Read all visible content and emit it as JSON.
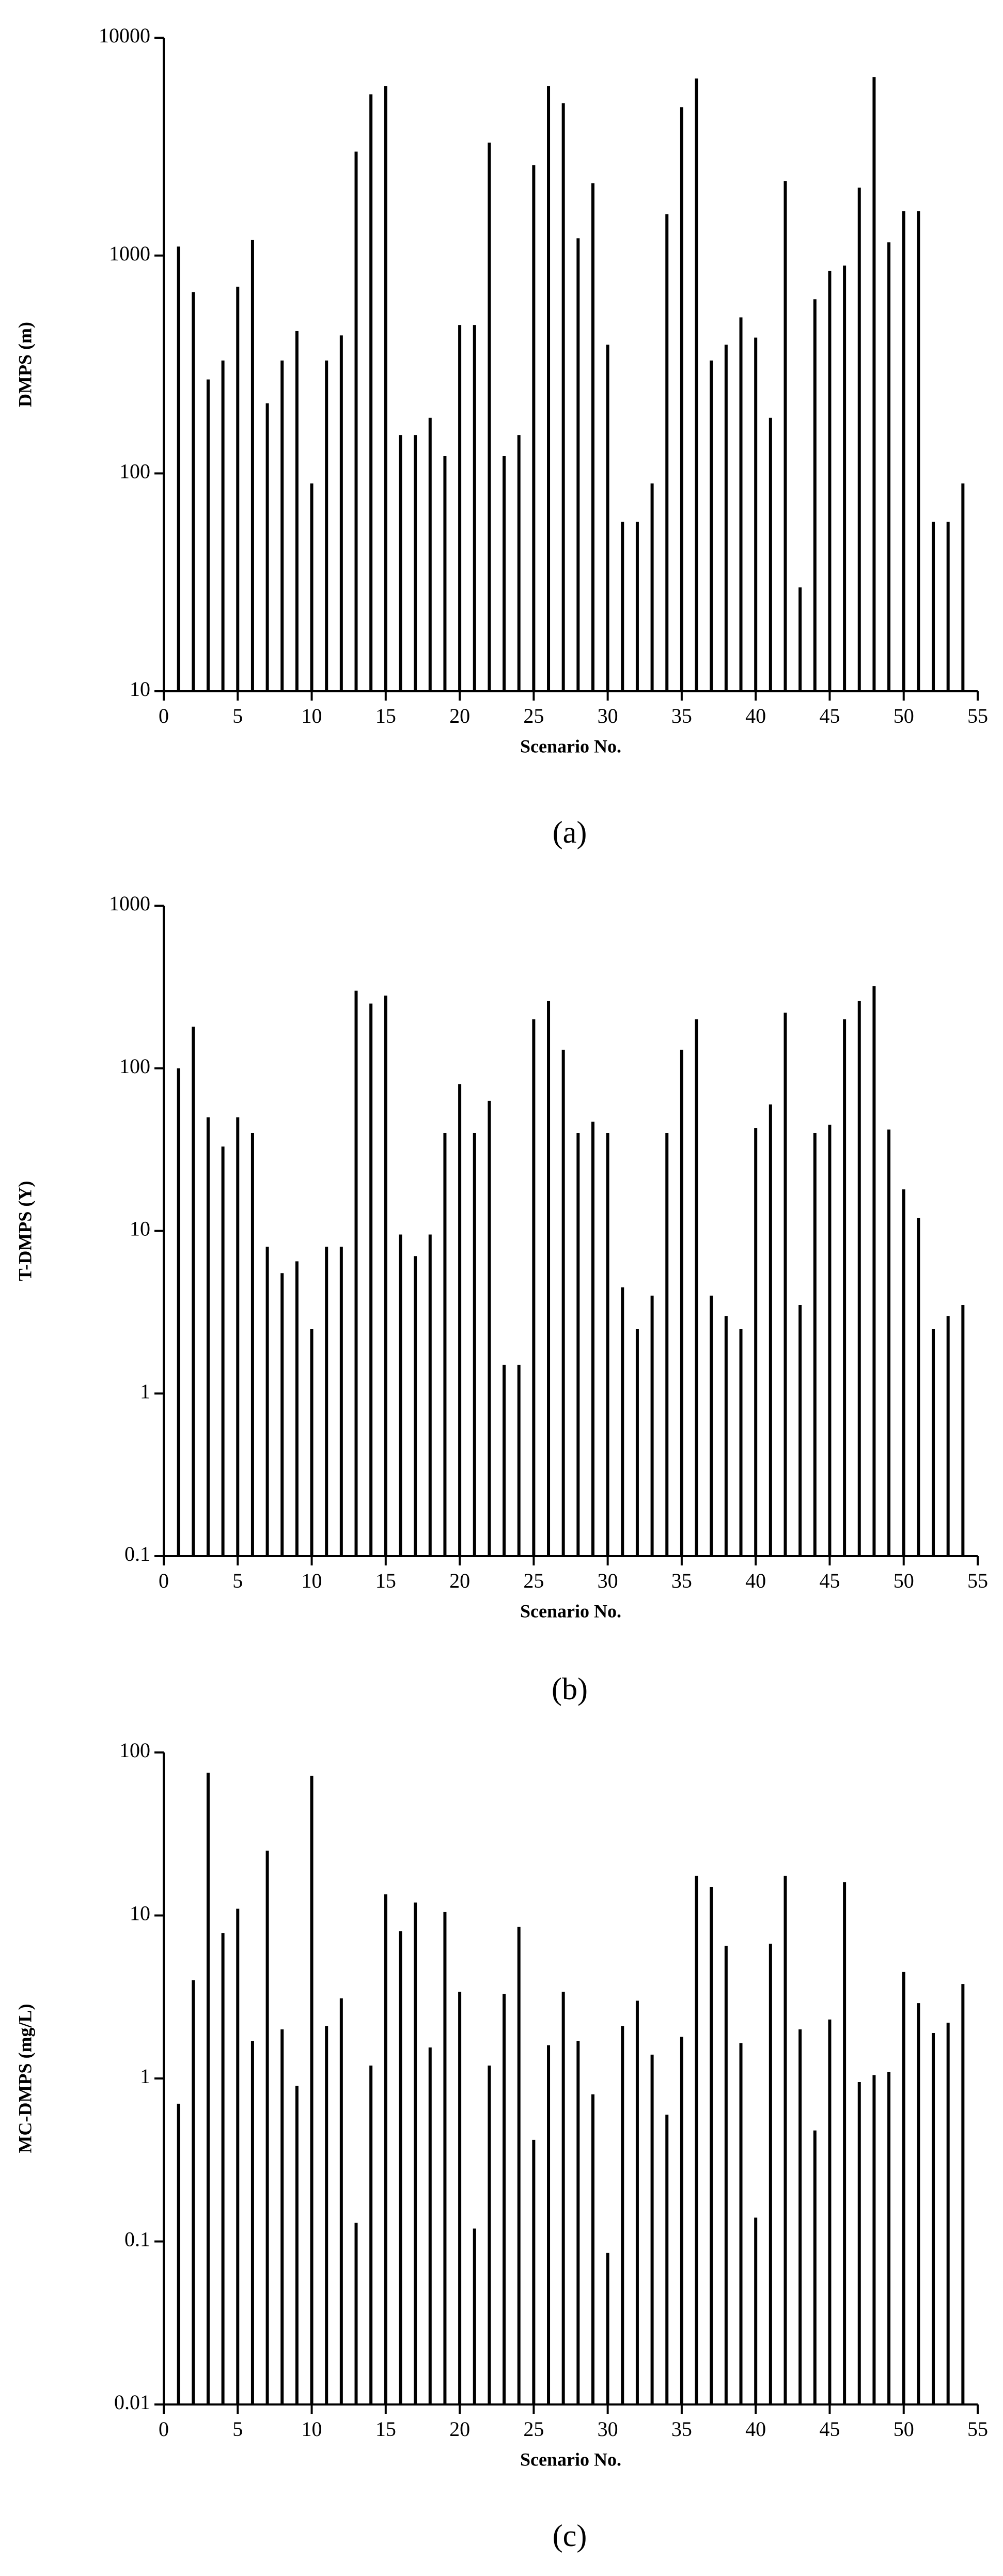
{
  "chart_data": [
    {
      "type": "bar",
      "x_label": "Scenario No.",
      "y_label": "DMPS (m)",
      "caption": "(a)",
      "color": "#000000",
      "log_y": true,
      "xlim": [
        0,
        55
      ],
      "xticks": [
        0,
        5,
        10,
        15,
        20,
        25,
        30,
        35,
        40,
        45,
        50,
        55
      ],
      "ylim": [
        10,
        10000
      ],
      "yticks": [
        10,
        100,
        1000,
        10000
      ],
      "x": [
        1,
        2,
        3,
        4,
        5,
        6,
        7,
        8,
        9,
        10,
        11,
        12,
        13,
        14,
        15,
        16,
        17,
        18,
        19,
        20,
        21,
        22,
        23,
        24,
        25,
        26,
        27,
        28,
        29,
        30,
        31,
        32,
        33,
        34,
        35,
        36,
        37,
        38,
        39,
        40,
        41,
        42,
        43,
        44,
        45,
        46,
        47,
        48,
        49,
        50,
        51,
        52,
        53,
        54
      ],
      "values": [
        1100,
        680,
        270,
        330,
        720,
        1180,
        210,
        330,
        450,
        90,
        330,
        430,
        3000,
        5500,
        6000,
        150,
        150,
        180,
        120,
        480,
        480,
        3300,
        120,
        150,
        2600,
        6000,
        5000,
        1200,
        2150,
        390,
        60,
        60,
        90,
        1550,
        4800,
        6500,
        330,
        390,
        520,
        420,
        180,
        2200,
        30,
        630,
        850,
        900,
        2050,
        6600,
        1150,
        1600,
        1600,
        60,
        60,
        90
      ]
    },
    {
      "type": "bar",
      "x_label": "Scenario No.",
      "y_label": "T-DMPS (Y)",
      "caption": "(b)",
      "color": "#000000",
      "log_y": true,
      "xlim": [
        0,
        55
      ],
      "xticks": [
        0,
        5,
        10,
        15,
        20,
        25,
        30,
        35,
        40,
        45,
        50,
        55
      ],
      "ylim": [
        0.1,
        1000
      ],
      "yticks": [
        0.1,
        1,
        10,
        100,
        1000
      ],
      "x": [
        1,
        2,
        3,
        4,
        5,
        6,
        7,
        8,
        9,
        10,
        11,
        12,
        13,
        14,
        15,
        16,
        17,
        18,
        19,
        20,
        21,
        22,
        23,
        24,
        25,
        26,
        27,
        28,
        29,
        30,
        31,
        32,
        33,
        34,
        35,
        36,
        37,
        38,
        39,
        40,
        41,
        42,
        43,
        44,
        45,
        46,
        47,
        48,
        49,
        50,
        51,
        52,
        53,
        54
      ],
      "values": [
        100,
        180,
        50,
        33,
        50,
        40,
        8,
        5.5,
        6.5,
        2.5,
        8,
        8,
        300,
        250,
        280,
        9.5,
        7,
        9.5,
        40,
        80,
        40,
        63,
        1.5,
        1.5,
        200,
        260,
        130,
        40,
        47,
        40,
        4.5,
        2.5,
        4,
        40,
        130,
        200,
        4,
        3,
        2.5,
        43,
        60,
        220,
        3.5,
        40,
        45,
        200,
        260,
        320,
        42,
        18,
        12,
        2.5,
        3,
        3.5
      ]
    },
    {
      "type": "bar",
      "x_label": "Scenario No.",
      "y_label": "MC-DMPS (mg/L)",
      "caption": "(c)",
      "color": "#000000",
      "log_y": true,
      "xlim": [
        0,
        55
      ],
      "xticks": [
        0,
        5,
        10,
        15,
        20,
        25,
        30,
        35,
        40,
        45,
        50,
        55
      ],
      "ylim": [
        0.01,
        100
      ],
      "yticks": [
        0.01,
        0.1,
        1,
        10,
        100
      ],
      "x": [
        1,
        2,
        3,
        4,
        5,
        6,
        7,
        8,
        9,
        10,
        11,
        12,
        13,
        14,
        15,
        16,
        17,
        18,
        19,
        20,
        21,
        22,
        23,
        24,
        25,
        26,
        27,
        28,
        29,
        30,
        31,
        32,
        33,
        34,
        35,
        36,
        37,
        38,
        39,
        40,
        41,
        42,
        43,
        44,
        45,
        46,
        47,
        48,
        49,
        50,
        51,
        52,
        53,
        54
      ],
      "values": [
        0.7,
        4,
        75,
        7.8,
        11,
        1.7,
        25,
        2,
        0.9,
        72,
        2.1,
        3.1,
        0.13,
        1.2,
        13.5,
        8,
        12,
        1.55,
        10.5,
        3.4,
        0.12,
        1.2,
        3.3,
        8.5,
        0.42,
        1.6,
        3.4,
        1.7,
        0.8,
        0.085,
        2.1,
        3,
        1.4,
        0.6,
        1.8,
        17.5,
        15,
        6.5,
        1.65,
        0.14,
        6.7,
        17.5,
        2,
        0.48,
        2.3,
        16,
        0.95,
        1.05,
        1.1,
        4.5,
        2.9,
        1.9,
        2.2,
        3.8
      ]
    }
  ]
}
